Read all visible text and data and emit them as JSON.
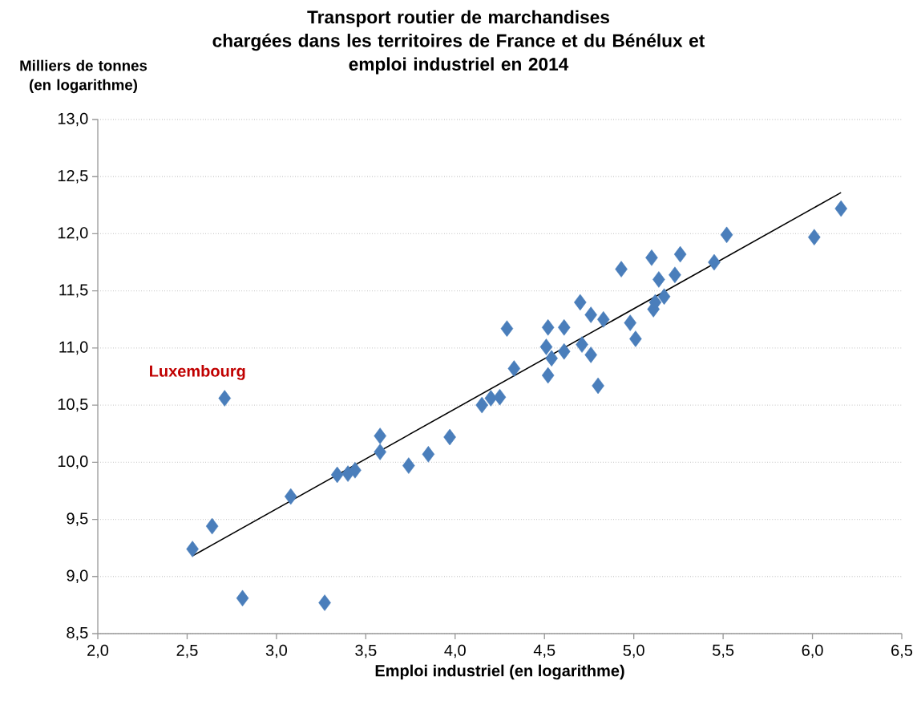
{
  "chart_data": {
    "type": "scatter",
    "title": "Transport routier de marchandises chargées dans les territoires de France et du Bénélux et emploi industriel en 2014",
    "xlabel": "Emploi industriel (en logarithme)",
    "ylabel": "Milliers de tonnes (en logarithme)",
    "xlim": [
      2.0,
      6.5
    ],
    "ylim": [
      8.5,
      13.0
    ],
    "xticks": [
      {
        "value": 2.0,
        "label": "2,0"
      },
      {
        "value": 2.5,
        "label": "2,5"
      },
      {
        "value": 3.0,
        "label": "3,0"
      },
      {
        "value": 3.5,
        "label": "3,5"
      },
      {
        "value": 4.0,
        "label": "4,0"
      },
      {
        "value": 4.5,
        "label": "4,5"
      },
      {
        "value": 5.0,
        "label": "5,0"
      },
      {
        "value": 5.5,
        "label": "5,5"
      },
      {
        "value": 6.0,
        "label": "6,0"
      },
      {
        "value": 6.5,
        "label": "6,5"
      }
    ],
    "yticks": [
      {
        "value": 8.5,
        "label": "8,5"
      },
      {
        "value": 9.0,
        "label": "9,0"
      },
      {
        "value": 9.5,
        "label": "9,5"
      },
      {
        "value": 10.0,
        "label": "10,0"
      },
      {
        "value": 10.5,
        "label": "10,5"
      },
      {
        "value": 11.0,
        "label": "11,0"
      },
      {
        "value": 11.5,
        "label": "11,5"
      },
      {
        "value": 12.0,
        "label": "12,0"
      },
      {
        "value": 12.5,
        "label": "12,5"
      },
      {
        "value": 13.0,
        "label": "13,0"
      }
    ],
    "grid": "y",
    "marker": "diamond",
    "series": [
      {
        "color": "#4a7ebb",
        "x": [
          2.53,
          2.64,
          2.71,
          2.81,
          3.08,
          3.27,
          3.34,
          3.4,
          3.44,
          3.58,
          3.58,
          3.74,
          3.85,
          3.97,
          4.15,
          4.2,
          4.25,
          4.29,
          4.33,
          4.51,
          4.52,
          4.52,
          4.54,
          4.61,
          4.61,
          4.7,
          4.71,
          4.76,
          4.76,
          4.8,
          4.83,
          4.93,
          4.98,
          5.01,
          5.1,
          5.11,
          5.12,
          5.14,
          5.17,
          5.23,
          5.26,
          5.45,
          5.52,
          6.01,
          6.16
        ],
        "values": [
          9.24,
          9.44,
          10.56,
          8.81,
          9.7,
          8.77,
          9.89,
          9.9,
          9.93,
          10.23,
          10.09,
          9.97,
          10.07,
          10.22,
          10.5,
          10.56,
          10.57,
          11.17,
          10.82,
          11.01,
          11.18,
          10.76,
          10.91,
          11.18,
          10.97,
          11.4,
          11.03,
          11.29,
          10.94,
          10.67,
          11.25,
          11.69,
          11.22,
          11.08,
          11.79,
          11.34,
          11.4,
          11.6,
          11.45,
          11.64,
          11.82,
          11.75,
          11.99,
          11.97,
          12.22
        ]
      },
      {
        "type": "line",
        "color": "#000000",
        "marker": "none",
        "x": [
          2.53,
          6.16
        ],
        "values": [
          9.18,
          12.36
        ]
      }
    ],
    "annotations": [
      {
        "text": "Luxembourg",
        "x": 2.71,
        "y": 10.56
      }
    ]
  }
}
